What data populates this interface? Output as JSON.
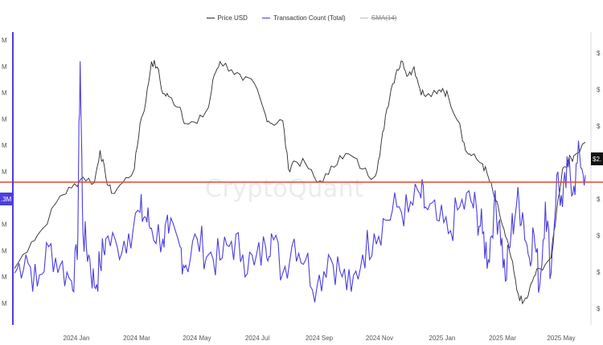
{
  "legend": {
    "price_label": "Price USD",
    "tx_label": "Transaction Count (Total)",
    "sma_label": "SMA(14)"
  },
  "watermark": "CryptoQuant",
  "colors": {
    "price": "#2b2b2b",
    "tx": "#4b3ee0",
    "hline": "#e8432f",
    "sma": "#bbbbbb"
  },
  "chart_data": {
    "type": "line",
    "title": "",
    "x_ticks": [
      "2024 Jan",
      "2024 Mar",
      "2024 May",
      "2024 Jul",
      "2024 Sep",
      "2024 Nov",
      "2025 Jan",
      "2025 Mar",
      "2025 May"
    ],
    "left_axis_ticks": [
      "M",
      "M",
      "M",
      "M",
      "M",
      "M",
      "M",
      "M",
      "M",
      "M",
      "M"
    ],
    "right_axis_ticks": [
      "$",
      "$",
      "$",
      "$",
      "$",
      "$",
      "$",
      "$"
    ],
    "current_price_tag": "$2.",
    "current_tx_tag": ".3M",
    "series": [
      {
        "name": "Price USD",
        "axis": "right",
        "points": [
          [
            0.0,
            0.18
          ],
          [
            0.03,
            0.28
          ],
          [
            0.05,
            0.33
          ],
          [
            0.08,
            0.45
          ],
          [
            0.1,
            0.48
          ],
          [
            0.12,
            0.52
          ],
          [
            0.14,
            0.5
          ],
          [
            0.15,
            0.62
          ],
          [
            0.16,
            0.52
          ],
          [
            0.17,
            0.46
          ],
          [
            0.19,
            0.5
          ],
          [
            0.21,
            0.55
          ],
          [
            0.22,
            0.72
          ],
          [
            0.23,
            0.8
          ],
          [
            0.24,
            0.95
          ],
          [
            0.25,
            0.93
          ],
          [
            0.26,
            0.83
          ],
          [
            0.27,
            0.82
          ],
          [
            0.29,
            0.78
          ],
          [
            0.3,
            0.72
          ],
          [
            0.32,
            0.72
          ],
          [
            0.34,
            0.78
          ],
          [
            0.35,
            0.9
          ],
          [
            0.36,
            0.95
          ],
          [
            0.38,
            0.92
          ],
          [
            0.4,
            0.88
          ],
          [
            0.42,
            0.87
          ],
          [
            0.44,
            0.75
          ],
          [
            0.45,
            0.72
          ],
          [
            0.47,
            0.73
          ],
          [
            0.48,
            0.55
          ],
          [
            0.49,
            0.58
          ],
          [
            0.51,
            0.57
          ],
          [
            0.53,
            0.5
          ],
          [
            0.55,
            0.53
          ],
          [
            0.57,
            0.6
          ],
          [
            0.59,
            0.6
          ],
          [
            0.61,
            0.55
          ],
          [
            0.63,
            0.52
          ],
          [
            0.64,
            0.6
          ],
          [
            0.65,
            0.75
          ],
          [
            0.66,
            0.85
          ],
          [
            0.67,
            0.92
          ],
          [
            0.68,
            0.95
          ],
          [
            0.69,
            0.9
          ],
          [
            0.7,
            0.93
          ],
          [
            0.71,
            0.85
          ],
          [
            0.72,
            0.82
          ],
          [
            0.74,
            0.83
          ],
          [
            0.75,
            0.85
          ],
          [
            0.76,
            0.82
          ],
          [
            0.78,
            0.72
          ],
          [
            0.79,
            0.62
          ],
          [
            0.8,
            0.6
          ],
          [
            0.82,
            0.57
          ],
          [
            0.83,
            0.52
          ],
          [
            0.84,
            0.45
          ],
          [
            0.85,
            0.38
          ],
          [
            0.86,
            0.3
          ],
          [
            0.87,
            0.22
          ],
          [
            0.88,
            0.1
          ],
          [
            0.89,
            0.05
          ],
          [
            0.9,
            0.08
          ],
          [
            0.91,
            0.15
          ],
          [
            0.92,
            0.18
          ],
          [
            0.94,
            0.22
          ],
          [
            0.95,
            0.4
          ],
          [
            0.96,
            0.55
          ],
          [
            0.97,
            0.58
          ],
          [
            0.98,
            0.6
          ],
          [
            1.0,
            0.65
          ]
        ]
      },
      {
        "name": "Transaction Count (Total)",
        "axis": "left",
        "points": [
          [
            0.0,
            0.15
          ],
          [
            0.02,
            0.22
          ],
          [
            0.04,
            0.1
          ],
          [
            0.06,
            0.25
          ],
          [
            0.08,
            0.18
          ],
          [
            0.1,
            0.12
          ],
          [
            0.11,
            0.2
          ],
          [
            0.115,
            0.95
          ],
          [
            0.12,
            0.3
          ],
          [
            0.13,
            0.22
          ],
          [
            0.14,
            0.1
          ],
          [
            0.15,
            0.18
          ],
          [
            0.16,
            0.28
          ],
          [
            0.18,
            0.25
          ],
          [
            0.2,
            0.3
          ],
          [
            0.22,
            0.38
          ],
          [
            0.23,
            0.36
          ],
          [
            0.24,
            0.32
          ],
          [
            0.26,
            0.28
          ],
          [
            0.27,
            0.3
          ],
          [
            0.29,
            0.25
          ],
          [
            0.3,
            0.18
          ],
          [
            0.32,
            0.28
          ],
          [
            0.34,
            0.22
          ],
          [
            0.36,
            0.2
          ],
          [
            0.38,
            0.27
          ],
          [
            0.4,
            0.22
          ],
          [
            0.42,
            0.18
          ],
          [
            0.44,
            0.25
          ],
          [
            0.45,
            0.3
          ],
          [
            0.47,
            0.15
          ],
          [
            0.49,
            0.28
          ],
          [
            0.51,
            0.2
          ],
          [
            0.53,
            0.1
          ],
          [
            0.55,
            0.22
          ],
          [
            0.57,
            0.16
          ],
          [
            0.59,
            0.08
          ],
          [
            0.61,
            0.22
          ],
          [
            0.63,
            0.3
          ],
          [
            0.65,
            0.35
          ],
          [
            0.67,
            0.4
          ],
          [
            0.69,
            0.38
          ],
          [
            0.71,
            0.45
          ],
          [
            0.72,
            0.4
          ],
          [
            0.74,
            0.35
          ],
          [
            0.76,
            0.3
          ],
          [
            0.78,
            0.4
          ],
          [
            0.8,
            0.42
          ],
          [
            0.81,
            0.38
          ],
          [
            0.82,
            0.3
          ],
          [
            0.83,
            0.2
          ],
          [
            0.84,
            0.4
          ],
          [
            0.85,
            0.35
          ],
          [
            0.86,
            0.12
          ],
          [
            0.87,
            0.3
          ],
          [
            0.88,
            0.42
          ],
          [
            0.89,
            0.38
          ],
          [
            0.9,
            0.22
          ],
          [
            0.91,
            0.3
          ],
          [
            0.92,
            0.1
          ],
          [
            0.93,
            0.42
          ],
          [
            0.94,
            0.15
          ],
          [
            0.95,
            0.52
          ],
          [
            0.96,
            0.4
          ],
          [
            0.97,
            0.55
          ],
          [
            0.98,
            0.48
          ],
          [
            0.99,
            0.6
          ],
          [
            1.0,
            0.52
          ]
        ]
      }
    ],
    "horizontal_line_value": 0.55
  }
}
